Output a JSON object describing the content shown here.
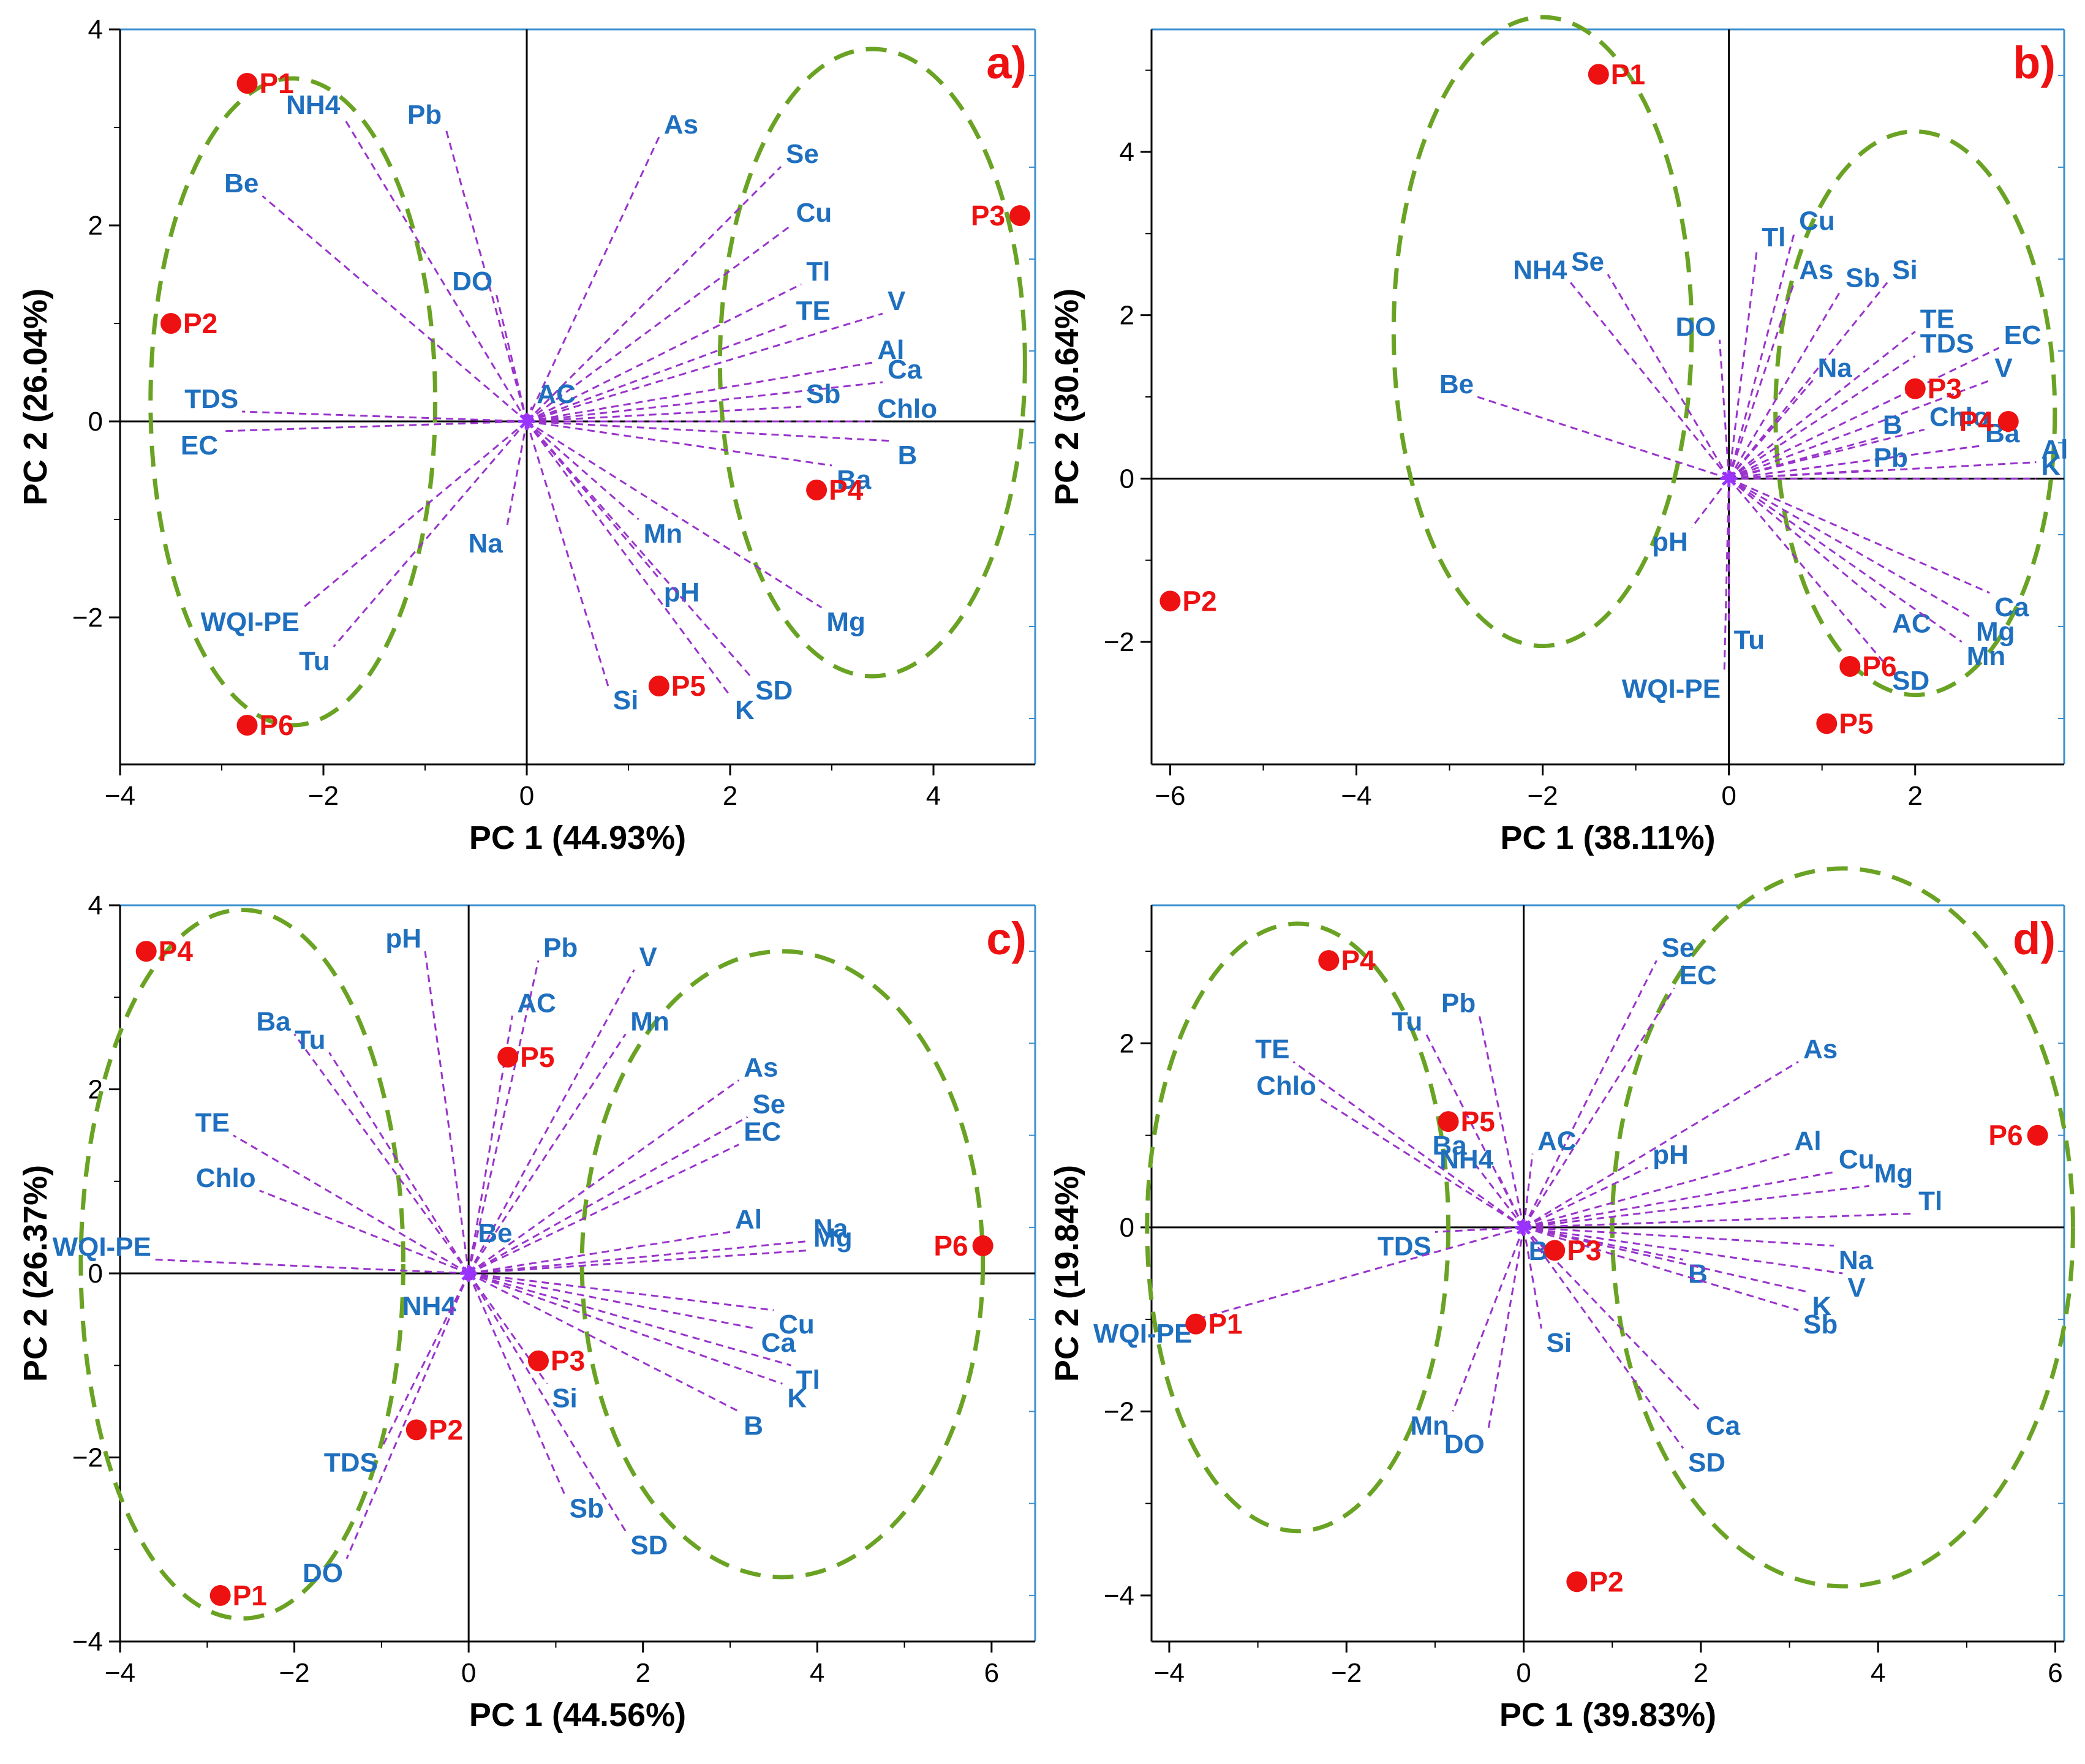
{
  "colors": {
    "loading": "#1f6fbf",
    "arrow": "#9933cc",
    "sample": "#ee1111",
    "ellipse": "#6aa324",
    "axis": "#000000",
    "frame": "#3b8fd0",
    "panel_label": "#ee1111",
    "origin": "#9933ff"
  },
  "chart_data": [
    {
      "type": "scatter",
      "panel": "a)",
      "xlabel": "PC 1 (44.93%)",
      "ylabel": "PC 2 (26.04%)",
      "xlim": [
        -4,
        5
      ],
      "ylim": [
        -3.5,
        4
      ],
      "xticks": [
        -4,
        -2,
        0,
        2,
        4
      ],
      "yticks": [
        -2,
        0,
        2,
        4
      ],
      "xtick_labels": [
        "−4",
        "−2",
        "0",
        "2",
        "4"
      ],
      "ytick_labels": [
        "−2",
        "0",
        "2",
        "4"
      ],
      "loadings": [
        {
          "name": "NH4",
          "x": -1.8,
          "y": 3.1
        },
        {
          "name": "Pb",
          "x": -0.8,
          "y": 3.0
        },
        {
          "name": "As",
          "x": 1.3,
          "y": 2.9
        },
        {
          "name": "Se",
          "x": 2.5,
          "y": 2.6
        },
        {
          "name": "Cu",
          "x": 2.6,
          "y": 2.0
        },
        {
          "name": "Be",
          "x": -2.6,
          "y": 2.3
        },
        {
          "name": "DO",
          "x": -0.3,
          "y": 1.3
        },
        {
          "name": "Tl",
          "x": 2.7,
          "y": 1.4
        },
        {
          "name": "TE",
          "x": 2.6,
          "y": 1.0
        },
        {
          "name": "V",
          "x": 3.5,
          "y": 1.1
        },
        {
          "name": "Al",
          "x": 3.4,
          "y": 0.6
        },
        {
          "name": "Ca",
          "x": 3.5,
          "y": 0.4
        },
        {
          "name": "TDS",
          "x": -2.8,
          "y": 0.1
        },
        {
          "name": "AC",
          "x": 0.05,
          "y": 0.15
        },
        {
          "name": "Sb",
          "x": 2.7,
          "y": 0.15
        },
        {
          "name": "Chlo",
          "x": 3.4,
          "y": 0.0
        },
        {
          "name": "B",
          "x": 3.6,
          "y": -0.2
        },
        {
          "name": "EC",
          "x": -3.0,
          "y": -0.1
        },
        {
          "name": "Ba",
          "x": 3.0,
          "y": -0.45
        },
        {
          "name": "Mn",
          "x": 1.1,
          "y": -1.0
        },
        {
          "name": "Na",
          "x": -0.2,
          "y": -1.1
        },
        {
          "name": "pH",
          "x": 1.3,
          "y": -1.6
        },
        {
          "name": "Mg",
          "x": 2.9,
          "y": -1.9
        },
        {
          "name": "WQI-PE",
          "x": -2.2,
          "y": -1.9
        },
        {
          "name": "Tu",
          "x": -1.9,
          "y": -2.3
        },
        {
          "name": "SD",
          "x": 2.2,
          "y": -2.6
        },
        {
          "name": "K",
          "x": 2.0,
          "y": -2.8
        },
        {
          "name": "Si",
          "x": 0.8,
          "y": -2.7
        }
      ],
      "samples": [
        {
          "name": "P1",
          "x": -2.75,
          "y": 3.45
        },
        {
          "name": "P2",
          "x": -3.5,
          "y": 1.0
        },
        {
          "name": "P3",
          "x": 4.85,
          "y": 2.1
        },
        {
          "name": "P4",
          "x": 2.85,
          "y": -0.7
        },
        {
          "name": "P5",
          "x": 1.3,
          "y": -2.7
        },
        {
          "name": "P6",
          "x": -2.75,
          "y": -3.1
        }
      ],
      "ellipses": [
        {
          "cx": -2.3,
          "cy": 0.2,
          "rx": 1.4,
          "ry": 3.3
        },
        {
          "cx": 3.4,
          "cy": 0.6,
          "rx": 1.5,
          "ry": 3.2
        }
      ]
    },
    {
      "type": "scatter",
      "panel": "b)",
      "xlabel": "PC 1 (38.11%)",
      "ylabel": "PC 2 (30.64%)",
      "xlim": [
        -6.2,
        3.6
      ],
      "ylim": [
        -3.5,
        5.5
      ],
      "xticks": [
        -6,
        -4,
        -2,
        0,
        2
      ],
      "yticks": [
        -2,
        0,
        2,
        4
      ],
      "xtick_labels": [
        "−6",
        "−4",
        "−2",
        "0",
        "2"
      ],
      "ytick_labels": [
        "−2",
        "0",
        "2",
        "4"
      ],
      "loadings": [
        {
          "name": "Cu",
          "x": 0.7,
          "y": 3.0
        },
        {
          "name": "Tl",
          "x": 0.3,
          "y": 2.8
        },
        {
          "name": "Se",
          "x": -1.3,
          "y": 2.5
        },
        {
          "name": "NH4",
          "x": -1.7,
          "y": 2.4
        },
        {
          "name": "As",
          "x": 0.7,
          "y": 2.4
        },
        {
          "name": "Sb",
          "x": 1.2,
          "y": 2.3
        },
        {
          "name": "Si",
          "x": 1.7,
          "y": 2.4
        },
        {
          "name": "DO",
          "x": -0.1,
          "y": 1.7
        },
        {
          "name": "TE",
          "x": 2.0,
          "y": 1.8
        },
        {
          "name": "EC",
          "x": 2.9,
          "y": 1.6
        },
        {
          "name": "TDS",
          "x": 2.0,
          "y": 1.5
        },
        {
          "name": "Na",
          "x": 0.9,
          "y": 1.2
        },
        {
          "name": "V",
          "x": 2.8,
          "y": 1.2
        },
        {
          "name": "Be",
          "x": -2.7,
          "y": 1.0
        },
        {
          "name": "B",
          "x": 1.6,
          "y": 0.5
        },
        {
          "name": "Chlo",
          "x": 2.1,
          "y": 0.6
        },
        {
          "name": "Ba",
          "x": 2.7,
          "y": 0.4
        },
        {
          "name": "Al",
          "x": 3.3,
          "y": 0.2
        },
        {
          "name": "Pb",
          "x": 1.5,
          "y": 0.1
        },
        {
          "name": "K",
          "x": 3.3,
          "y": 0.0
        },
        {
          "name": "pH",
          "x": -0.4,
          "y": -0.6
        },
        {
          "name": "Ca",
          "x": 2.8,
          "y": -1.4
        },
        {
          "name": "AC",
          "x": 1.7,
          "y": -1.6
        },
        {
          "name": "Mg",
          "x": 2.6,
          "y": -1.7
        },
        {
          "name": "Mn",
          "x": 2.5,
          "y": -2.0
        },
        {
          "name": "Tu",
          "x": 0.0,
          "y": -1.8
        },
        {
          "name": "SD",
          "x": 1.7,
          "y": -2.3
        },
        {
          "name": "WQI-PE",
          "x": -0.05,
          "y": -2.4
        }
      ],
      "samples": [
        {
          "name": "P1",
          "x": -1.4,
          "y": 4.95
        },
        {
          "name": "P2",
          "x": -6.0,
          "y": -1.5
        },
        {
          "name": "P3",
          "x": 2.0,
          "y": 1.1
        },
        {
          "name": "P4",
          "x": 3.0,
          "y": 0.7
        },
        {
          "name": "P5",
          "x": 1.05,
          "y": -3.0
        },
        {
          "name": "P6",
          "x": 1.3,
          "y": -2.3
        }
      ],
      "ellipses": [
        {
          "cx": -2.0,
          "cy": 1.8,
          "rx": 1.6,
          "ry": 3.85
        },
        {
          "cx": 2.0,
          "cy": 0.8,
          "rx": 1.5,
          "ry": 3.45
        }
      ]
    },
    {
      "type": "scatter",
      "panel": "c)",
      "xlabel": "PC 1 (44.56%)",
      "ylabel": "PC 2 (26.37%)",
      "xlim": [
        -4,
        6.5
      ],
      "ylim": [
        -4,
        4
      ],
      "xticks": [
        -4,
        -2,
        0,
        2,
        4,
        6
      ],
      "yticks": [
        -4,
        -2,
        0,
        2,
        4
      ],
      "xtick_labels": [
        "−4",
        "−2",
        "0",
        "2",
        "4",
        "6"
      ],
      "ytick_labels": [
        "−4",
        "−2",
        "0",
        "2",
        "4"
      ],
      "loadings": [
        {
          "name": "pH",
          "x": -0.5,
          "y": 3.5
        },
        {
          "name": "Pb",
          "x": 0.8,
          "y": 3.4
        },
        {
          "name": "V",
          "x": 1.9,
          "y": 3.3
        },
        {
          "name": "AC",
          "x": 0.5,
          "y": 2.8
        },
        {
          "name": "Mn",
          "x": 1.8,
          "y": 2.6
        },
        {
          "name": "Ba",
          "x": -2.0,
          "y": 2.6
        },
        {
          "name": "Tu",
          "x": -1.6,
          "y": 2.4
        },
        {
          "name": "As",
          "x": 3.1,
          "y": 2.1
        },
        {
          "name": "Se",
          "x": 3.2,
          "y": 1.7
        },
        {
          "name": "EC",
          "x": 3.1,
          "y": 1.4
        },
        {
          "name": "TE",
          "x": -2.7,
          "y": 1.5
        },
        {
          "name": "Chlo",
          "x": -2.4,
          "y": 0.9
        },
        {
          "name": "Al",
          "x": 3.0,
          "y": 0.45
        },
        {
          "name": "Na",
          "x": 3.9,
          "y": 0.35
        },
        {
          "name": "Be",
          "x": 0.05,
          "y": 0.3
        },
        {
          "name": "Mg",
          "x": 3.9,
          "y": 0.25
        },
        {
          "name": "WQI-PE",
          "x": -3.6,
          "y": 0.15
        },
        {
          "name": "NH4",
          "x": -0.1,
          "y": -0.2
        },
        {
          "name": "Cu",
          "x": 3.5,
          "y": -0.4
        },
        {
          "name": "Ca",
          "x": 3.3,
          "y": -0.6
        },
        {
          "name": "Tl",
          "x": 3.7,
          "y": -1.0
        },
        {
          "name": "K",
          "x": 3.6,
          "y": -1.2
        },
        {
          "name": "Si",
          "x": 0.9,
          "y": -1.2
        },
        {
          "name": "B",
          "x": 3.1,
          "y": -1.5
        },
        {
          "name": "TDS",
          "x": -1.0,
          "y": -1.9
        },
        {
          "name": "Sb",
          "x": 1.1,
          "y": -2.4
        },
        {
          "name": "SD",
          "x": 1.8,
          "y": -2.8
        },
        {
          "name": "DO",
          "x": -1.4,
          "y": -3.1
        }
      ],
      "samples": [
        {
          "name": "P1",
          "x": -2.85,
          "y": -3.5
        },
        {
          "name": "P2",
          "x": -0.6,
          "y": -1.7
        },
        {
          "name": "P3",
          "x": 0.8,
          "y": -0.95
        },
        {
          "name": "P4",
          "x": -3.7,
          "y": 3.5
        },
        {
          "name": "P5",
          "x": 0.45,
          "y": 2.35
        },
        {
          "name": "P6",
          "x": 5.9,
          "y": 0.3
        }
      ],
      "ellipses": [
        {
          "cx": -2.6,
          "cy": 0.1,
          "rx": 1.85,
          "ry": 3.85
        },
        {
          "cx": 3.6,
          "cy": 0.1,
          "rx": 2.3,
          "ry": 3.4
        }
      ]
    },
    {
      "type": "scatter",
      "panel": "d)",
      "xlabel": "PC 1 (39.83%)",
      "ylabel": "PC 2 (19.84%)",
      "xlim": [
        -4.2,
        6.1
      ],
      "ylim": [
        -4.5,
        3.5
      ],
      "xticks": [
        -4,
        -2,
        0,
        2,
        4,
        6
      ],
      "yticks": [
        -4,
        -2,
        0,
        2
      ],
      "xtick_labels": [
        "−4",
        "−2",
        "0",
        "2",
        "4",
        "6"
      ],
      "ytick_labels": [
        "−4",
        "−2",
        "0",
        "2"
      ],
      "loadings": [
        {
          "name": "Se",
          "x": 1.5,
          "y": 2.9
        },
        {
          "name": "EC",
          "x": 1.7,
          "y": 2.6
        },
        {
          "name": "Pb",
          "x": -0.5,
          "y": 2.3
        },
        {
          "name": "Tu",
          "x": -1.1,
          "y": 2.1
        },
        {
          "name": "TE",
          "x": -2.6,
          "y": 1.8
        },
        {
          "name": "As",
          "x": 3.1,
          "y": 1.8
        },
        {
          "name": "Chlo",
          "x": -2.3,
          "y": 1.4
        },
        {
          "name": "AC",
          "x": 0.1,
          "y": 0.8
        },
        {
          "name": "pH",
          "x": 1.4,
          "y": 0.65
        },
        {
          "name": "Al",
          "x": 3.0,
          "y": 0.8
        },
        {
          "name": "Cu",
          "x": 3.5,
          "y": 0.6
        },
        {
          "name": "Mg",
          "x": 3.9,
          "y": 0.45
        },
        {
          "name": "Ba",
          "x": -0.6,
          "y": 0.75
        },
        {
          "name": "NH4",
          "x": -0.3,
          "y": 0.6
        },
        {
          "name": "Tl",
          "x": 4.4,
          "y": 0.15
        },
        {
          "name": "TDS",
          "x": -1.0,
          "y": -0.05
        },
        {
          "name": "Be",
          "x": 0.0,
          "y": -0.1
        },
        {
          "name": "Na",
          "x": 3.5,
          "y": -0.2
        },
        {
          "name": "B",
          "x": 1.8,
          "y": -0.35
        },
        {
          "name": "V",
          "x": 3.6,
          "y": -0.5
        },
        {
          "name": "K",
          "x": 3.2,
          "y": -0.7
        },
        {
          "name": "Sb",
          "x": 3.1,
          "y": -0.9
        },
        {
          "name": "Si",
          "x": 0.2,
          "y": -1.1
        },
        {
          "name": "WQI-PE",
          "x": -3.7,
          "y": -1.0
        },
        {
          "name": "Mn",
          "x": -0.8,
          "y": -2.0
        },
        {
          "name": "DO",
          "x": -0.4,
          "y": -2.2
        },
        {
          "name": "Ca",
          "x": 2.0,
          "y": -2.0
        },
        {
          "name": "SD",
          "x": 1.8,
          "y": -2.4
        }
      ],
      "samples": [
        {
          "name": "P1",
          "x": -3.7,
          "y": -1.05
        },
        {
          "name": "P2",
          "x": 0.6,
          "y": -3.85
        },
        {
          "name": "P3",
          "x": 0.35,
          "y": -0.25
        },
        {
          "name": "P4",
          "x": -2.2,
          "y": 2.9
        },
        {
          "name": "P5",
          "x": -0.85,
          "y": 1.15
        },
        {
          "name": "P6",
          "x": 5.8,
          "y": 1.0
        }
      ],
      "ellipses": [
        {
          "cx": -2.55,
          "cy": 0.0,
          "rx": 1.7,
          "ry": 3.3
        },
        {
          "cx": 3.6,
          "cy": 0.0,
          "rx": 2.6,
          "ry": 3.9
        }
      ]
    }
  ]
}
